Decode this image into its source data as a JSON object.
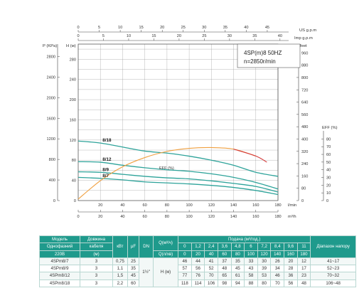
{
  "chart_data": {
    "type": "line",
    "title": "4SP(m)8  50HZ",
    "subtitle": "n=2850r/min",
    "axes": {
      "bottom_x": {
        "label": "m³/h",
        "ticks": [
          0,
          20,
          40,
          60,
          80,
          100,
          120,
          140,
          160,
          180
        ],
        "range": [
          0,
          180
        ]
      },
      "bottom_x2": {
        "label": "l/min",
        "ticks": [
          0,
          20,
          40,
          60,
          80,
          100,
          120,
          140,
          160,
          180
        ]
      },
      "top_x1": {
        "label": "US g.p.m",
        "ticks": [
          0,
          5,
          10,
          15,
          20,
          25,
          30,
          35,
          40,
          45
        ]
      },
      "top_x2": {
        "label": "Imp g.p.m",
        "ticks": [
          0,
          5,
          10,
          15,
          20,
          25,
          30,
          35,
          40
        ]
      },
      "left_y1": {
        "label": "P (KPa)",
        "ticks": [
          0,
          400,
          800,
          1200,
          1600,
          2000,
          2400,
          2800
        ]
      },
      "left_y2": {
        "label": "H (м)",
        "ticks": [
          0,
          40,
          80,
          120,
          160,
          200,
          240,
          280
        ],
        "range": [
          0,
          310
        ]
      },
      "right_y1": {
        "label": "feet",
        "ticks": [
          0,
          80,
          160,
          240,
          320,
          400,
          480,
          560,
          640,
          720,
          800,
          880,
          960
        ]
      },
      "right_y2": {
        "label": "EFF (%)",
        "ticks": [
          0,
          10,
          20,
          30,
          40,
          50,
          60,
          70,
          80
        ]
      }
    },
    "series": [
      {
        "name": "8/18",
        "x": [
          0,
          20,
          40,
          60,
          80,
          100,
          120,
          140,
          160,
          180
        ],
        "y": [
          118,
          114,
          106,
          98,
          94,
          88,
          80,
          70,
          56,
          48
        ]
      },
      {
        "name": "8/12",
        "x": [
          0,
          20,
          40,
          60,
          80,
          100,
          120,
          140,
          160,
          180
        ],
        "y": [
          77,
          76,
          70,
          65,
          61,
          58,
          53,
          46,
          36,
          23
        ]
      },
      {
        "name": "8/9",
        "x": [
          0,
          20,
          40,
          60,
          80,
          100,
          120,
          140,
          160,
          180
        ],
        "y": [
          57,
          56,
          52,
          48,
          45,
          43,
          39,
          34,
          28,
          17
        ]
      },
      {
        "name": "8/7",
        "x": [
          0,
          20,
          40,
          60,
          80,
          100,
          120,
          140,
          160,
          180
        ],
        "y": [
          46,
          44,
          41,
          37,
          35,
          33,
          30,
          26,
          20,
          12
        ]
      }
    ],
    "efficiency": {
      "label": "EFF (%)",
      "x": [
        0,
        20,
        40,
        60,
        80,
        100,
        120,
        140,
        160,
        170
      ],
      "eff": [
        0,
        24,
        42,
        54,
        62,
        66,
        67,
        65,
        56,
        48
      ]
    },
    "grid": true
  },
  "table": {
    "header1": [
      "Модель",
      "Довжина",
      "кВт",
      "μF",
      "DN",
      "Q(м³/ч)",
      "Подача (м³/год.)",
      "Діапазон напору"
    ],
    "header1b": [
      "Однофазний",
      "кабеля"
    ],
    "header3": [
      "220В",
      "(м)",
      "Q(л/хв)"
    ],
    "q_m3h": [
      "0",
      "1,2",
      "2,4",
      "3,6",
      "4,8",
      "6",
      "7,2",
      "8,4",
      "9,6",
      "11"
    ],
    "q_lmin": [
      "0",
      "20",
      "40",
      "60",
      "80",
      "100",
      "120",
      "140",
      "160",
      "180"
    ],
    "dn": "1½\"",
    "h_label": "H (м)",
    "rows": [
      {
        "model": "4SPm8/7",
        "cable": "3",
        "kw": "0,75",
        "uf": "25",
        "h": [
          "46",
          "44",
          "41",
          "37",
          "35",
          "33",
          "30",
          "26",
          "20",
          "12"
        ],
        "range": "41~17"
      },
      {
        "model": "4SPm8/9",
        "cable": "3",
        "kw": "1,1",
        "uf": "35",
        "h": [
          "57",
          "56",
          "52",
          "48",
          "45",
          "43",
          "39",
          "34",
          "28",
          "17"
        ],
        "range": "52~23"
      },
      {
        "model": "4SPm8/12",
        "cable": "3",
        "kw": "1,5",
        "uf": "45",
        "h": [
          "77",
          "76",
          "70",
          "65",
          "61",
          "58",
          "53",
          "46",
          "36",
          "23"
        ],
        "range": "70~32"
      },
      {
        "model": "4SPm8/18",
        "cable": "3",
        "kw": "2,2",
        "uf": "60",
        "h": [
          "118",
          "114",
          "106",
          "98",
          "94",
          "88",
          "80",
          "70",
          "56",
          "48"
        ],
        "range": "106~48"
      }
    ]
  },
  "colors": {
    "curve": "#2ea39a",
    "eff": "#f0a040",
    "eff_end": "#d43a3a",
    "grid": "#999999",
    "table_head": "#1f9a8c"
  }
}
